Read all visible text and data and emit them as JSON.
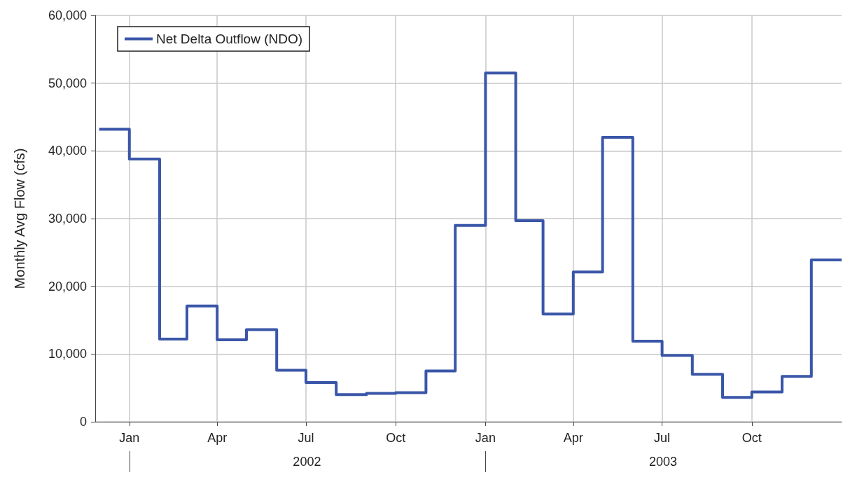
{
  "chart_data": {
    "type": "step",
    "ylabel": "Monthly Avg Flow (cfs)",
    "x": [
      "2001-12",
      "2002-01",
      "2002-02",
      "2002-03",
      "2002-04",
      "2002-05",
      "2002-06",
      "2002-07",
      "2002-08",
      "2002-09",
      "2002-10",
      "2002-11",
      "2002-12",
      "2003-01",
      "2003-02",
      "2003-03",
      "2003-04",
      "2003-05",
      "2003-06",
      "2003-07",
      "2003-08",
      "2003-09",
      "2003-10",
      "2003-11",
      "2003-12",
      "2004-01"
    ],
    "series": [
      {
        "name": "Net Delta Outflow (NDO)",
        "color": "#3a56a8",
        "values": [
          43200,
          38800,
          12200,
          17100,
          12100,
          13600,
          7600,
          5800,
          4000,
          4200,
          4300,
          7500,
          29000,
          51500,
          29700,
          15900,
          22100,
          42000,
          11900,
          9800,
          7000,
          3600,
          4400,
          6700,
          23900,
          23900
        ]
      }
    ],
    "xlim": [
      "2001-11-27",
      "2004-01-01"
    ],
    "xticks": [
      {
        "value": "2002-01-01",
        "label": "Jan"
      },
      {
        "value": "2002-04-01",
        "label": "Apr"
      },
      {
        "value": "2002-07-01",
        "label": "Jul"
      },
      {
        "value": "2002-10-01",
        "label": "Oct"
      },
      {
        "value": "2003-01-01",
        "label": "Jan"
      },
      {
        "value": "2003-04-01",
        "label": "Apr"
      },
      {
        "value": "2003-07-01",
        "label": "Jul"
      },
      {
        "value": "2003-10-01",
        "label": "Oct"
      }
    ],
    "x2lim": [
      "2001-11-27",
      "2004-01-01"
    ],
    "x2ticks": [
      {
        "value": "2002-01-01",
        "label": null
      },
      {
        "value": "2002-07-02",
        "label": "2002"
      },
      {
        "value": "2003-01-01",
        "label": null
      },
      {
        "value": "2003-07-02",
        "label": "2003"
      }
    ],
    "ylim": [
      0,
      60000
    ],
    "yticks": [
      0,
      {
        "value": 10000,
        "label": "10,000"
      },
      {
        "value": 20000,
        "label": "20,000"
      },
      {
        "value": 30000,
        "label": "30,000"
      },
      {
        "value": 40000,
        "label": "40,000"
      },
      {
        "value": 50000,
        "label": "50,000"
      },
      {
        "value": 60000,
        "label": "60,000"
      }
    ],
    "grid": true,
    "legend": "top left",
    "line_style": "solid",
    "marker": "none"
  }
}
